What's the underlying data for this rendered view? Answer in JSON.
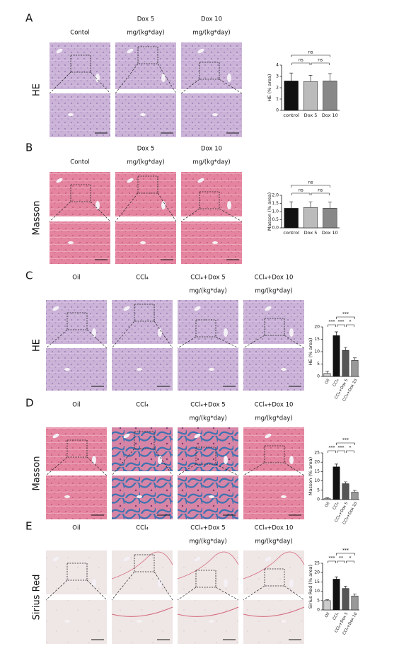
{
  "panels": [
    {
      "letter": "A",
      "stain": "HE",
      "columns": [
        [
          "Contol"
        ],
        [
          "Dox 5",
          "mg/(kg*day)"
        ],
        [
          "Dox 10",
          "mg/(kg*day)"
        ]
      ]
    },
    {
      "letter": "B",
      "stain": "Masson",
      "columns": [
        [
          "Contol"
        ],
        [
          "Dox 5",
          "mg/(kg*day)"
        ],
        [
          "Dox 10",
          "mg/(kg*day)"
        ]
      ]
    },
    {
      "letter": "C",
      "stain": "HE",
      "columns": [
        [
          "Oil"
        ],
        [
          "CCl₄"
        ],
        [
          "CCl₄+Dox 5",
          "mg/(kg*day)"
        ],
        [
          "CCl₄+Dox 10",
          "mg/(kg*day)"
        ]
      ]
    },
    {
      "letter": "D",
      "stain": "Masson",
      "columns": [
        [
          "Oil"
        ],
        [
          "CCl₄"
        ],
        [
          "CCl₄+Dox 5",
          "mg/(kg*day)"
        ],
        [
          "CCl₄+Dox 10",
          "mg/(kg*day)"
        ]
      ]
    },
    {
      "letter": "E",
      "stain": "Sirius Red",
      "columns": [
        [
          "Oil"
        ],
        [
          "CCl₄"
        ],
        [
          "CCl₄+Dox 5",
          "mg/(kg*day)"
        ],
        [
          "CCl₄+Dox 10",
          "mg/(kg*day)"
        ]
      ]
    }
  ],
  "chart_data": [
    {
      "type": "bar",
      "y_label": "HE (% area)",
      "categories": [
        "control",
        "Dox 5",
        "Dox 10"
      ],
      "values": [
        2.6,
        2.55,
        2.6
      ],
      "errors": [
        0.7,
        0.55,
        0.65
      ],
      "colors": [
        "#111111",
        "#bbbbbb",
        "#888888"
      ],
      "ylim": [
        0,
        4
      ],
      "yticks": [
        0,
        1,
        2,
        3,
        4
      ],
      "comparisons": [
        {
          "from": "control",
          "to": "Dox 5",
          "label": "ns"
        },
        {
          "from": "Dox 5",
          "to": "Dox 10",
          "label": "ns"
        },
        {
          "from": "control",
          "to": "Dox 10",
          "label": "ns"
        }
      ]
    },
    {
      "type": "bar",
      "y_label": "Masson (% area)",
      "categories": [
        "control",
        "Dox 5",
        "Dox 10"
      ],
      "values": [
        1.2,
        1.25,
        1.2
      ],
      "errors": [
        0.4,
        0.35,
        0.38
      ],
      "colors": [
        "#111111",
        "#bbbbbb",
        "#888888"
      ],
      "ylim": [
        0,
        2
      ],
      "yticks": [
        {
          "value": 0,
          "label": "0.0"
        },
        {
          "value": 0.5,
          "label": "0.5"
        },
        {
          "value": 1,
          "label": "1.0"
        },
        {
          "value": 1.5,
          "label": "1.5"
        },
        {
          "value": 2,
          "label": "2.0"
        }
      ],
      "comparisons": [
        {
          "from": "control",
          "to": "Dox 5",
          "label": "ns"
        },
        {
          "from": "Dox 5",
          "to": "Dox 10",
          "label": "ns"
        },
        {
          "from": "control",
          "to": "Dox 10",
          "label": "ns"
        }
      ]
    },
    {
      "type": "bar",
      "y_label": "HE (% area)",
      "categories": [
        "Oil",
        "CCl₄",
        "CCl₄+Dox 5",
        "CCl₄+Dox 10"
      ],
      "values": [
        1.2,
        16.5,
        10.5,
        6.5
      ],
      "errors": [
        0.9,
        1.5,
        1.2,
        1.0
      ],
      "colors": [
        "#cccccc",
        "#111111",
        "#555555",
        "#999999"
      ],
      "ylim": [
        0,
        20
      ],
      "yticks": [
        0,
        5,
        10,
        15,
        20
      ],
      "comparisons": [
        {
          "from": "Oil",
          "to": "CCl₄",
          "label": "***"
        },
        {
          "from": "CCl₄",
          "to": "CCl₄+Dox 5",
          "label": "***"
        },
        {
          "from": "CCl₄+Dox 5",
          "to": "CCl₄+Dox 10",
          "label": "*"
        },
        {
          "from": "CCl₄",
          "to": "CCl₄+Dox 10",
          "label": "***"
        }
      ]
    },
    {
      "type": "bar",
      "y_label": "Masson (% area)",
      "categories": [
        "Oil",
        "CCl₄",
        "CCl₄+Dox 5",
        "CCl₄+Dox 10"
      ],
      "values": [
        0.5,
        17.5,
        8.5,
        4
      ],
      "errors": [
        0.5,
        1.5,
        1.0,
        0.9
      ],
      "colors": [
        "#cccccc",
        "#111111",
        "#555555",
        "#999999"
      ],
      "ylim": [
        0,
        25
      ],
      "yticks": [
        0,
        5,
        10,
        15,
        20,
        25
      ],
      "comparisons": [
        {
          "from": "Oil",
          "to": "CCl₄",
          "label": "***"
        },
        {
          "from": "CCl₄",
          "to": "CCl₄+Dox 5",
          "label": "***"
        },
        {
          "from": "CCl₄+Dox 5",
          "to": "CCl₄+Dox 10",
          "label": "*"
        },
        {
          "from": "CCl₄",
          "to": "CCl₄+Dox 10",
          "label": "***"
        }
      ]
    },
    {
      "type": "bar",
      "y_label": "Sirius Red (% area)",
      "categories": [
        "Oil",
        "CCl₄",
        "CCl₄+Dox 5",
        "CCl₄+Dox 10"
      ],
      "values": [
        5,
        16.5,
        11.5,
        7.5
      ],
      "errors": [
        0.5,
        1.2,
        1.2,
        1.1
      ],
      "colors": [
        "#cccccc",
        "#111111",
        "#555555",
        "#999999"
      ],
      "ylim": [
        0,
        25
      ],
      "yticks": [
        0,
        5,
        10,
        15,
        20,
        25
      ],
      "comparisons": [
        {
          "from": "Oil",
          "to": "CCl₄",
          "label": "***"
        },
        {
          "from": "CCl₄",
          "to": "CCl₄+Dox 5",
          "label": "**"
        },
        {
          "from": "CCl₄+Dox 5",
          "to": "CCl₄+Dox 10",
          "label": "*"
        },
        {
          "from": "CCl₄",
          "to": "CCl₄+Dox 10",
          "label": "***"
        }
      ]
    }
  ]
}
